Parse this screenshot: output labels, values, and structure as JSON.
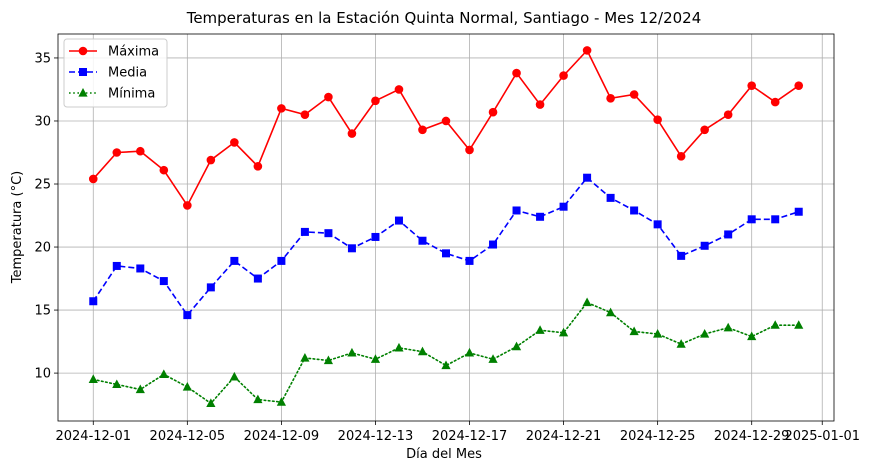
{
  "chart_data": {
    "type": "line",
    "title": "Temperaturas en la Estación Quinta Normal, Santiago - Mes 12/2024",
    "xlabel": "Día del Mes",
    "ylabel": "Temperatura (°C)",
    "x": [
      "2024-12-01",
      "2024-12-02",
      "2024-12-03",
      "2024-12-04",
      "2024-12-05",
      "2024-12-06",
      "2024-12-07",
      "2024-12-08",
      "2024-12-09",
      "2024-12-10",
      "2024-12-11",
      "2024-12-12",
      "2024-12-13",
      "2024-12-14",
      "2024-12-15",
      "2024-12-16",
      "2024-12-17",
      "2024-12-18",
      "2024-12-19",
      "2024-12-20",
      "2024-12-21",
      "2024-12-22",
      "2024-12-23",
      "2024-12-24",
      "2024-12-25",
      "2024-12-26",
      "2024-12-27",
      "2024-12-28",
      "2024-12-29",
      "2024-12-30",
      "2024-12-31"
    ],
    "xlim": [
      "2024-11-29T12:00",
      "2025-01-01T12:00"
    ],
    "ylim": [
      6.2,
      36.9
    ],
    "xticks": [
      "2024-12-01",
      "2024-12-05",
      "2024-12-09",
      "2024-12-13",
      "2024-12-17",
      "2024-12-21",
      "2024-12-25",
      "2024-12-29",
      "2025-01-01"
    ],
    "yticks": [
      10,
      15,
      20,
      25,
      30,
      35
    ],
    "grid": true,
    "legend_position": "top-left",
    "series": [
      {
        "name": "Máxima",
        "color": "#ff0000",
        "linestyle": "solid",
        "marker": "circle",
        "values": [
          25.4,
          27.5,
          27.6,
          26.1,
          23.3,
          26.9,
          28.3,
          26.4,
          31.0,
          30.5,
          31.9,
          29.0,
          31.6,
          32.5,
          29.3,
          30.0,
          27.7,
          30.7,
          33.8,
          31.3,
          33.6,
          35.6,
          31.8,
          32.1,
          30.1,
          27.2,
          29.3,
          30.5,
          32.8,
          31.5,
          32.8
        ]
      },
      {
        "name": "Media",
        "color": "#0000ff",
        "linestyle": "dashed",
        "marker": "square",
        "values": [
          15.7,
          18.5,
          18.3,
          17.3,
          14.6,
          16.8,
          18.9,
          17.5,
          18.9,
          21.2,
          21.1,
          19.9,
          20.8,
          22.1,
          20.5,
          19.5,
          18.9,
          20.2,
          22.9,
          22.4,
          23.2,
          25.5,
          23.9,
          22.9,
          21.8,
          19.3,
          20.1,
          21.0,
          22.2,
          22.2,
          22.8
        ]
      },
      {
        "name": "Mínima",
        "color": "#008000",
        "linestyle": "dotted",
        "marker": "triangle",
        "values": [
          9.5,
          9.1,
          8.7,
          9.9,
          8.9,
          7.6,
          9.7,
          7.9,
          7.7,
          11.2,
          11.0,
          11.6,
          11.1,
          12.0,
          11.7,
          10.6,
          11.6,
          11.1,
          12.1,
          13.4,
          13.2,
          15.6,
          14.8,
          13.3,
          13.1,
          12.3,
          13.1,
          13.6,
          12.9,
          13.8,
          13.8
        ]
      }
    ]
  }
}
